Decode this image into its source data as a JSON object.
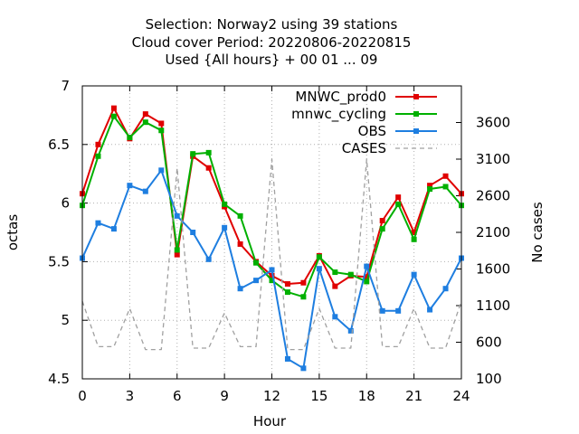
{
  "chart_data": {
    "type": "line",
    "title_lines": [
      "Selection: Norway2 using    39 stations",
      "Cloud cover   Period: 20220806-20220815",
      "Used {All hours} + 00 01 ... 09"
    ],
    "xlabel": "Hour",
    "ylabel": "octas",
    "y2label": "No cases",
    "xlim": [
      0,
      24
    ],
    "ylim": [
      4.5,
      7
    ],
    "y2lim": [
      100,
      4100
    ],
    "xticks": [
      "0",
      "3",
      "6",
      "9",
      "12",
      "15",
      "18",
      "21",
      "24"
    ],
    "yticks": [
      "4.5",
      "5",
      "5.5",
      "6",
      "6.5",
      "7"
    ],
    "y2ticks": [
      "100",
      "600",
      "1100",
      "1600",
      "2100",
      "2600",
      "3100",
      "3600"
    ],
    "grid": true,
    "legend_position": "top-right",
    "x": [
      0,
      1,
      2,
      3,
      4,
      5,
      6,
      7,
      8,
      9,
      10,
      11,
      12,
      13,
      14,
      15,
      16,
      17,
      18,
      19,
      20,
      21,
      22,
      23,
      24
    ],
    "series": [
      {
        "name": "MNWC_prod0",
        "axis": "y1",
        "color": "#e00000",
        "values": [
          6.08,
          6.5,
          6.81,
          6.55,
          6.76,
          6.68,
          5.56,
          6.4,
          6.3,
          5.97,
          5.65,
          5.5,
          5.38,
          5.31,
          5.32,
          5.55,
          5.29,
          5.38,
          5.37,
          5.85,
          6.05,
          5.75,
          6.15,
          6.23,
          6.08
        ]
      },
      {
        "name": "mnwc_cycling",
        "axis": "y1",
        "color": "#00b000",
        "values": [
          5.98,
          6.4,
          6.74,
          6.56,
          6.69,
          6.62,
          5.6,
          6.42,
          6.43,
          5.99,
          5.89,
          5.49,
          5.34,
          5.24,
          5.2,
          5.54,
          5.41,
          5.39,
          5.33,
          5.78,
          5.99,
          5.69,
          6.12,
          6.14,
          5.98
        ]
      },
      {
        "name": "OBS",
        "axis": "y1",
        "color": "#1e7ee0",
        "values": [
          5.53,
          5.83,
          5.78,
          6.15,
          6.1,
          6.28,
          5.89,
          5.75,
          5.52,
          5.79,
          5.27,
          5.34,
          5.43,
          4.67,
          4.59,
          5.44,
          5.03,
          4.91,
          5.46,
          5.08,
          5.08,
          5.39,
          5.09,
          5.27,
          5.53
        ]
      },
      {
        "name": "CASES",
        "axis": "y2",
        "color": "#a0a0a0",
        "values": [
          1160,
          540,
          540,
          1060,
          500,
          500,
          2980,
          520,
          520,
          1000,
          540,
          540,
          3100,
          500,
          500,
          1060,
          520,
          520,
          3100,
          540,
          540,
          1060,
          520,
          520,
          1160
        ]
      }
    ]
  }
}
